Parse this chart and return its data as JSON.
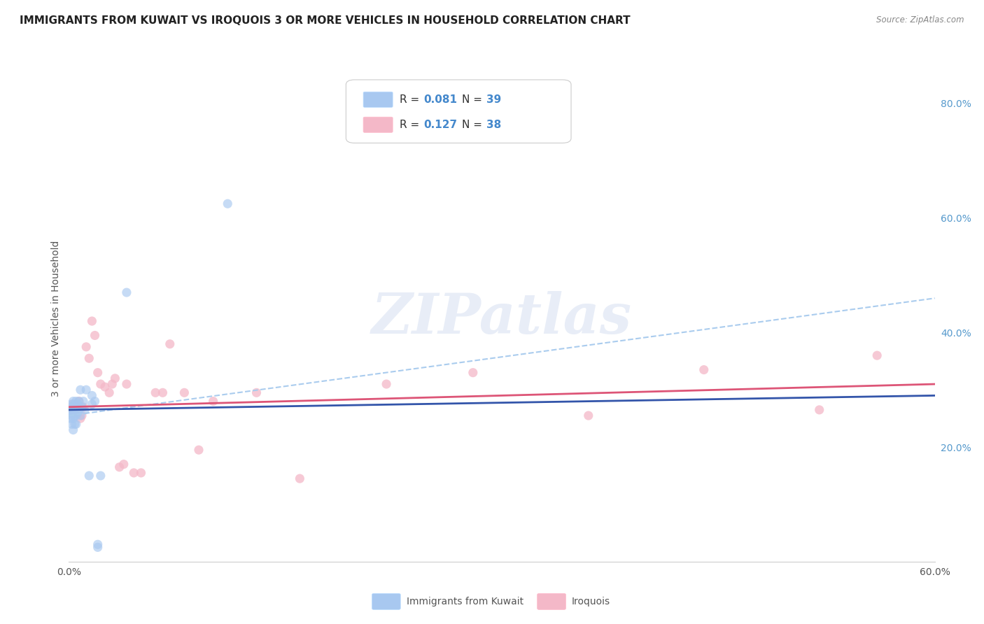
{
  "title": "IMMIGRANTS FROM KUWAIT VS IROQUOIS 3 OR MORE VEHICLES IN HOUSEHOLD CORRELATION CHART",
  "source": "Source: ZipAtlas.com",
  "ylabel": "3 or more Vehicles in Household",
  "x_min": 0.0,
  "x_max": 0.6,
  "y_min": 0.0,
  "y_max": 0.85,
  "x_ticks": [
    0.0,
    0.1,
    0.2,
    0.3,
    0.4,
    0.5,
    0.6
  ],
  "x_tick_labels": [
    "0.0%",
    "",
    "",
    "",
    "",
    "",
    "60.0%"
  ],
  "y_ticks_right": [
    0.2,
    0.4,
    0.6,
    0.8
  ],
  "y_tick_labels_right": [
    "20.0%",
    "40.0%",
    "60.0%",
    "80.0%"
  ],
  "legend1_R": "0.081",
  "legend1_N": "39",
  "legend2_R": "0.127",
  "legend2_N": "38",
  "blue_color": "#a8c8f0",
  "pink_color": "#f4b8c8",
  "blue_line_color": "#3355aa",
  "pink_line_color": "#dd5577",
  "dashed_color": "#aaccee",
  "watermark_text": "ZIPatlas",
  "blue_scatter_x": [
    0.001,
    0.001,
    0.001,
    0.002,
    0.002,
    0.002,
    0.002,
    0.003,
    0.003,
    0.003,
    0.003,
    0.003,
    0.004,
    0.004,
    0.004,
    0.004,
    0.005,
    0.005,
    0.005,
    0.005,
    0.006,
    0.006,
    0.007,
    0.007,
    0.008,
    0.008,
    0.009,
    0.01,
    0.011,
    0.012,
    0.014,
    0.016,
    0.016,
    0.018,
    0.02,
    0.02,
    0.022,
    0.04,
    0.11
  ],
  "blue_scatter_y": [
    0.27,
    0.26,
    0.25,
    0.275,
    0.265,
    0.255,
    0.24,
    0.28,
    0.27,
    0.26,
    0.25,
    0.23,
    0.275,
    0.265,
    0.255,
    0.24,
    0.28,
    0.27,
    0.255,
    0.24,
    0.275,
    0.26,
    0.28,
    0.265,
    0.3,
    0.255,
    0.27,
    0.28,
    0.265,
    0.3,
    0.15,
    0.29,
    0.275,
    0.28,
    0.025,
    0.03,
    0.15,
    0.47,
    0.625
  ],
  "pink_scatter_x": [
    0.002,
    0.003,
    0.004,
    0.005,
    0.006,
    0.007,
    0.008,
    0.009,
    0.01,
    0.012,
    0.014,
    0.016,
    0.018,
    0.02,
    0.022,
    0.025,
    0.028,
    0.03,
    0.032,
    0.035,
    0.038,
    0.04,
    0.045,
    0.05,
    0.06,
    0.065,
    0.07,
    0.08,
    0.09,
    0.1,
    0.13,
    0.16,
    0.22,
    0.28,
    0.36,
    0.44,
    0.52,
    0.56
  ],
  "pink_scatter_y": [
    0.265,
    0.275,
    0.26,
    0.27,
    0.265,
    0.28,
    0.25,
    0.255,
    0.27,
    0.375,
    0.355,
    0.42,
    0.395,
    0.33,
    0.31,
    0.305,
    0.295,
    0.31,
    0.32,
    0.165,
    0.17,
    0.31,
    0.155,
    0.155,
    0.295,
    0.295,
    0.38,
    0.295,
    0.195,
    0.28,
    0.295,
    0.145,
    0.31,
    0.33,
    0.255,
    0.335,
    0.265,
    0.36
  ],
  "blue_trend_x": [
    0.0,
    0.6
  ],
  "blue_trend_y": [
    0.265,
    0.29
  ],
  "pink_trend_x": [
    0.0,
    0.6
  ],
  "pink_trend_y": [
    0.27,
    0.31
  ],
  "dashed_trend_x": [
    0.0,
    0.6
  ],
  "dashed_trend_y": [
    0.255,
    0.46
  ],
  "background_color": "#ffffff",
  "grid_color": "#e0e0e0",
  "title_fontsize": 11,
  "axis_label_fontsize": 10,
  "tick_fontsize": 10
}
